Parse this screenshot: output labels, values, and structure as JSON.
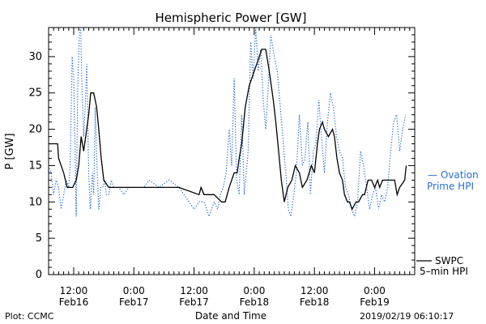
{
  "chart_data": {
    "type": "line",
    "title": "Hemispheric Power [GW]",
    "xlabel": "Date and Time",
    "ylabel": "P [GW]",
    "ylim": [
      0,
      34
    ],
    "xlim_hours": [
      -17,
      56
    ],
    "y_ticks": [
      0,
      5,
      10,
      15,
      20,
      25,
      30
    ],
    "x_ticks": [
      {
        "hour": -12,
        "label1": "12:00",
        "label2": "Feb16"
      },
      {
        "hour": 0,
        "label1": "0:00",
        "label2": "Feb17"
      },
      {
        "hour": 12,
        "label1": "12:00",
        "label2": "Feb17"
      },
      {
        "hour": 24,
        "label1": "0:00",
        "label2": "Feb18"
      },
      {
        "hour": 36,
        "label1": "12:00",
        "label2": "Feb18"
      },
      {
        "hour": 48,
        "label1": "0:00",
        "label2": "Feb19"
      }
    ],
    "series": [
      {
        "name": "SWPC 5-min HPI",
        "style": "solid",
        "color": "#000000",
        "x": [
          -17,
          -15.2,
          -15,
          -14,
          -13.3,
          -12.2,
          -11.5,
          -11,
          -10.5,
          -10,
          -9.6,
          -9,
          -8.6,
          -8,
          -7.4,
          -7,
          -6.5,
          -6,
          -5,
          -4.5,
          -3,
          0,
          3,
          9,
          13,
          13.4,
          14,
          16,
          17.5,
          18.2,
          19,
          20,
          20.6,
          21,
          21.5,
          22.2,
          23,
          24,
          24.5,
          25.5,
          26.3,
          27,
          27.8,
          28.3,
          29,
          29.4,
          30,
          30.7,
          31.5,
          32.2,
          33,
          33.6,
          34.5,
          35.4,
          36,
          36.6,
          37,
          37.6,
          38,
          38.8,
          39.6,
          40,
          40.5,
          41,
          41.6,
          42,
          42.6,
          43,
          43.5,
          44.3,
          44.8,
          45.6,
          46,
          46.7,
          47.4,
          48,
          48.6,
          49,
          49.6,
          50,
          51,
          52,
          52.5,
          53,
          54,
          54.3
        ],
        "y": [
          18,
          18,
          16,
          14,
          12,
          12,
          13,
          15,
          19,
          17,
          19,
          22,
          25,
          25,
          23,
          20,
          16,
          13,
          12,
          12,
          12,
          12,
          12,
          12,
          11,
          12,
          11,
          11,
          10,
          10,
          12,
          14,
          14,
          16,
          18,
          23,
          26,
          28,
          29,
          31,
          31,
          28,
          24,
          21,
          16,
          13,
          10,
          12,
          13,
          15,
          14,
          12,
          13,
          15,
          14,
          18,
          20,
          21,
          20,
          19,
          20,
          19,
          16,
          14,
          13,
          11,
          10,
          10,
          9,
          10,
          10,
          11,
          11,
          13,
          13,
          12,
          13,
          12,
          13,
          13,
          13,
          13,
          11,
          12,
          13,
          15
        ]
      },
      {
        "name": "Ovation Prime HPI",
        "style": "dotted",
        "color": "#2a6fd6",
        "x": [
          -17,
          -16.5,
          -16,
          -15.5,
          -15,
          -14.5,
          -14,
          -13.5,
          -13,
          -12.7,
          -12.3,
          -12,
          -11.5,
          -11.2,
          -10.9,
          -10.6,
          -10.4,
          -10,
          -9.7,
          -9.4,
          -9,
          -8.7,
          -8.3,
          -8,
          -7.7,
          -7.4,
          -7,
          -6.6,
          -6.2,
          -5.8,
          -5.5,
          -5,
          -4.5,
          -4,
          -3,
          -2,
          -1,
          0,
          1,
          2,
          3,
          5,
          7,
          9,
          11,
          12,
          13,
          14,
          15,
          16,
          16.7,
          17.2,
          17.8,
          18.4,
          19,
          19.5,
          20,
          20.5,
          21,
          21.5,
          22,
          22.4,
          22.8,
          23.3,
          23.8,
          24.3,
          24.8,
          25.3,
          25.8,
          26.3,
          26.8,
          27.3,
          28,
          28.6,
          29.2,
          29.8,
          30.3,
          30.8,
          31.3,
          31.9,
          32.4,
          33,
          33.6,
          34.1,
          34.7,
          35.2,
          35.8,
          36.3,
          36.9,
          37.4,
          38,
          38.6,
          39.2,
          39.8,
          40.4,
          41,
          41.6,
          42.2,
          42.8,
          43.4,
          44,
          44.6,
          45.2,
          45.8,
          46.4,
          47,
          47.6,
          48.2,
          48.8,
          49.4,
          50,
          50.6,
          51.2,
          51.8,
          52.4,
          53,
          53.6,
          54.2
        ],
        "y": [
          15,
          14,
          11,
          13,
          12,
          9,
          11,
          13,
          12,
          15,
          30,
          27,
          8,
          25,
          33,
          34,
          27,
          19,
          23,
          29,
          14,
          9,
          14,
          11,
          23,
          16,
          9,
          12,
          12,
          13,
          11,
          11,
          13,
          12,
          12,
          11,
          12,
          12,
          12,
          12,
          13,
          12,
          13,
          12,
          10,
          9,
          10,
          10,
          8,
          10,
          9,
          11,
          12,
          14,
          20,
          15,
          27,
          13,
          11,
          22,
          11,
          14,
          17,
          32,
          27,
          34,
          28,
          31,
          24,
          20,
          26,
          33,
          30,
          28,
          23,
          18,
          14,
          9,
          8,
          11,
          14,
          22,
          15,
          16,
          21,
          11,
          17,
          18,
          24,
          19,
          14,
          21,
          25,
          23,
          19,
          17,
          16,
          12,
          11,
          9,
          8,
          10,
          17,
          15,
          12,
          9,
          11,
          12,
          9,
          11,
          10,
          12,
          17,
          21,
          22,
          17,
          20,
          22
        ]
      }
    ]
  },
  "labels": {
    "legend_ovation_line1": "— Ovation",
    "legend_ovation_line2": "Prime HPI",
    "legend_swpc_line1": "SWPC",
    "legend_swpc_line2": "5–min HPI",
    "footer_left": "Plot: CCMC",
    "footer_right": "2019/02/19 06:10:17"
  }
}
